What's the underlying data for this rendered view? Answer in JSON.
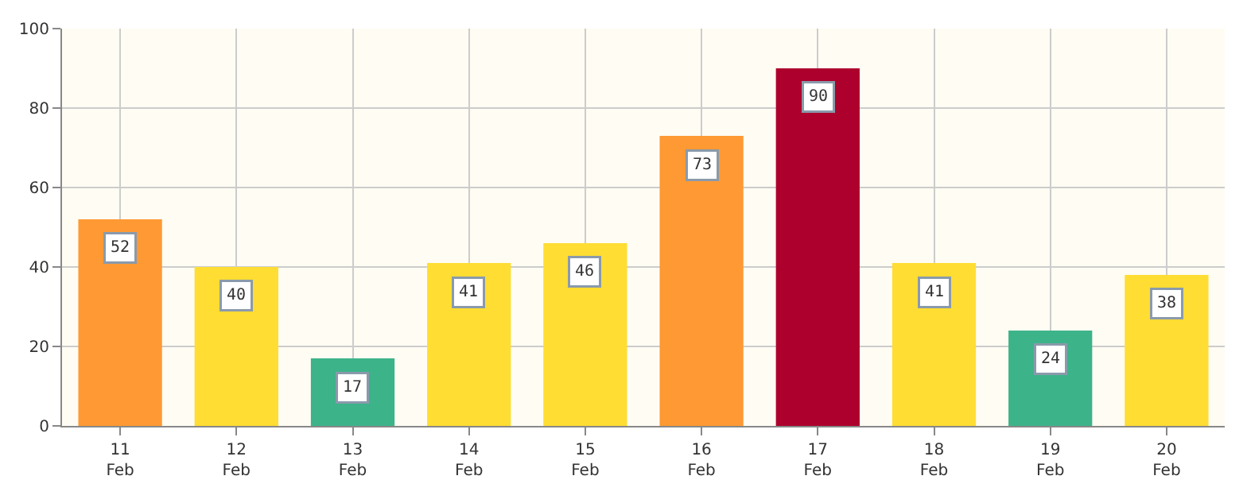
{
  "chart_data": {
    "type": "bar",
    "categories": [
      "11\nFeb",
      "12\nFeb",
      "13\nFeb",
      "14\nFeb",
      "15\nFeb",
      "16\nFeb",
      "17\nFeb",
      "18\nFeb",
      "19\nFeb",
      "20\nFeb"
    ],
    "values": [
      52,
      40,
      17,
      41,
      46,
      73,
      90,
      41,
      24,
      38
    ],
    "colors": [
      "#ff9933",
      "#ffdd33",
      "#3db38a",
      "#ffdd33",
      "#ffdd33",
      "#ff9933",
      "#ad002c",
      "#ffdd33",
      "#3db38a",
      "#ffdd33"
    ],
    "ylim": [
      0,
      100
    ],
    "yticks": [
      0,
      20,
      40,
      60,
      80,
      100
    ],
    "grid": true,
    "data_labels": true
  }
}
